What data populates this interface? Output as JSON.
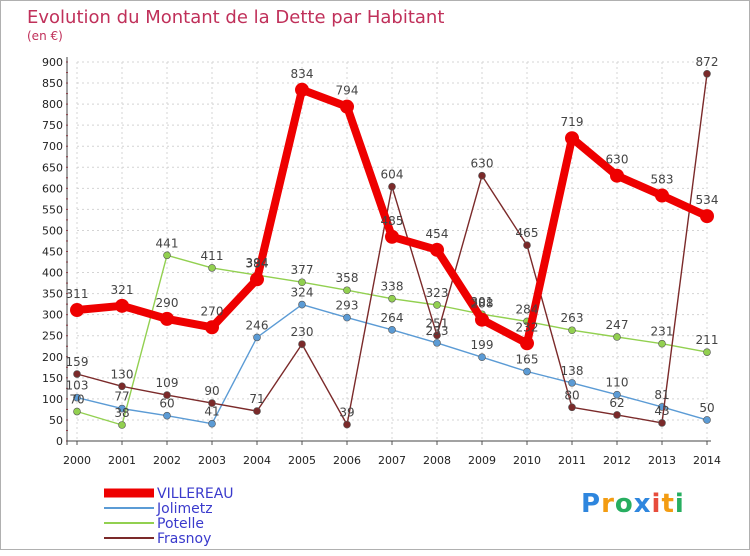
{
  "chart_data": {
    "type": "line",
    "title": "Evolution du Montant de la Dette par Habitant",
    "subtitle": "(en €)",
    "x": [
      "2000",
      "2001",
      "2002",
      "2003",
      "2004",
      "2005",
      "2006",
      "2007",
      "2008",
      "2009",
      "2010",
      "2011",
      "2012",
      "2013",
      "2014"
    ],
    "ylim": [
      0,
      900
    ],
    "yticks": [
      0,
      50,
      100,
      150,
      200,
      250,
      300,
      350,
      400,
      450,
      500,
      550,
      600,
      650,
      700,
      750,
      800,
      850,
      900
    ],
    "grid": true,
    "legend_position": "bottom-left",
    "series": [
      {
        "name": "VILLEREAU",
        "color": "#ee0000",
        "emphasis": true,
        "values": [
          311,
          321,
          290,
          270,
          384,
          834,
          794,
          485,
          454,
          288,
          232,
          719,
          630,
          583,
          534
        ]
      },
      {
        "name": "Jolimetz",
        "color": "#5b9bd5",
        "emphasis": false,
        "values": [
          103,
          77,
          60,
          41,
          246,
          324,
          293,
          264,
          233,
          199,
          165,
          138,
          110,
          81,
          50
        ]
      },
      {
        "name": "Potelle",
        "color": "#92d050",
        "emphasis": false,
        "values": [
          70,
          38,
          441,
          411,
          394,
          377,
          358,
          338,
          323,
          301,
          284,
          263,
          247,
          231,
          211
        ]
      },
      {
        "name": "Frasnoy",
        "color": "#7b2a2a",
        "emphasis": false,
        "values": [
          159,
          130,
          109,
          90,
          71,
          230,
          39,
          604,
          251,
          630,
          465,
          80,
          62,
          43,
          872
        ]
      }
    ]
  },
  "brand": {
    "letters": [
      "P",
      "r",
      "o",
      "x",
      "i",
      "t",
      "i"
    ],
    "colors": [
      "#2e86de",
      "#f39c12",
      "#27ae60",
      "#2e86de",
      "#e74c3c",
      "#f39c12",
      "#27ae60"
    ]
  }
}
